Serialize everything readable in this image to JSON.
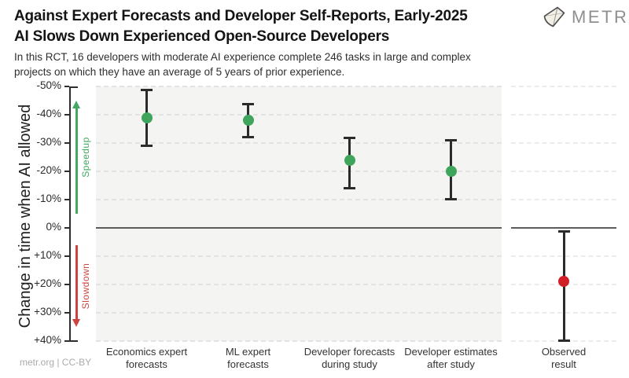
{
  "header": {
    "title_line1": "Against Expert Forecasts and Developer Self-Reports, Early-2025",
    "title_line2": "AI Slows Down Experienced Open-Source Developers",
    "subtitle_line1": "In this RCT, 16 developers with moderate AI experience complete 246 tasks in large and complex",
    "subtitle_line2": "projects on which they have an average of 5 years of prior experience.",
    "logo_text": "METR"
  },
  "footer": {
    "credit": "metr.org | CC-BY"
  },
  "chart_data": {
    "type": "scatter",
    "title": "Against Expert Forecasts and Developer Self-Reports, Early-2025 AI Slows Down Experienced Open-Source Developers",
    "subtitle": "In this RCT, 16 developers with moderate AI experience complete 246 tasks in large and complex projects on which they have an average of 5 years of prior experience.",
    "ylabel": "Change in time when AI allowed",
    "xlabel": "",
    "ylim": [
      -50,
      40
    ],
    "y_axis_inverted": true,
    "grid": "horizontal-dashed",
    "yticks": [
      {
        "value": -50,
        "label": "-50%"
      },
      {
        "value": -40,
        "label": "-40%"
      },
      {
        "value": -30,
        "label": "-30%"
      },
      {
        "value": -20,
        "label": "-20%"
      },
      {
        "value": -10,
        "label": "-10%"
      },
      {
        "value": 0,
        "label": "0%"
      },
      {
        "value": 10,
        "label": "+10%"
      },
      {
        "value": 20,
        "label": "+20%"
      },
      {
        "value": 30,
        "label": "+30%"
      },
      {
        "value": 40,
        "label": "+40%"
      }
    ],
    "zero_line_value": 0,
    "annotations": {
      "speedup": {
        "label": "Speedup",
        "direction": "up",
        "color": "#43a860",
        "span_pct": [
          -45,
          -5
        ]
      },
      "slowdown": {
        "label": "Slowdown",
        "direction": "down",
        "color": "#cd4340",
        "span_pct": [
          6,
          35
        ]
      }
    },
    "points": [
      {
        "panel": "main",
        "category": "Economics expert forecasts",
        "category_lines": [
          "Economics expert",
          "forecasts"
        ],
        "value_pct": -39,
        "ci_pct": [
          -49,
          -29
        ],
        "color": "#3fa55c"
      },
      {
        "panel": "main",
        "category": "ML expert forecasts",
        "category_lines": [
          "ML expert",
          "forecasts"
        ],
        "value_pct": -38,
        "ci_pct": [
          -44,
          -32
        ],
        "color": "#3fa55c"
      },
      {
        "panel": "main",
        "category": "Developer forecasts during study",
        "category_lines": [
          "Developer forecasts",
          "during study"
        ],
        "value_pct": -24,
        "ci_pct": [
          -32,
          -14
        ],
        "color": "#3fa55c"
      },
      {
        "panel": "main",
        "category": "Developer estimates after study",
        "category_lines": [
          "Developer estimates",
          "after study"
        ],
        "value_pct": -20,
        "ci_pct": [
          -31,
          -10
        ],
        "color": "#3fa55c"
      },
      {
        "panel": "observed",
        "category": "Observed result",
        "category_lines": [
          "Observed",
          "result"
        ],
        "value_pct": 19,
        "ci_pct": [
          1,
          40
        ],
        "color": "#d01f27"
      }
    ],
    "colors": {
      "green": "#3fa55c",
      "red": "#d01f27",
      "panel_bg": "#f4f4f3",
      "gridline": "#e3e3e3",
      "zero_line": "#5c5c5c",
      "error_bar": "#2b2b2b"
    }
  }
}
